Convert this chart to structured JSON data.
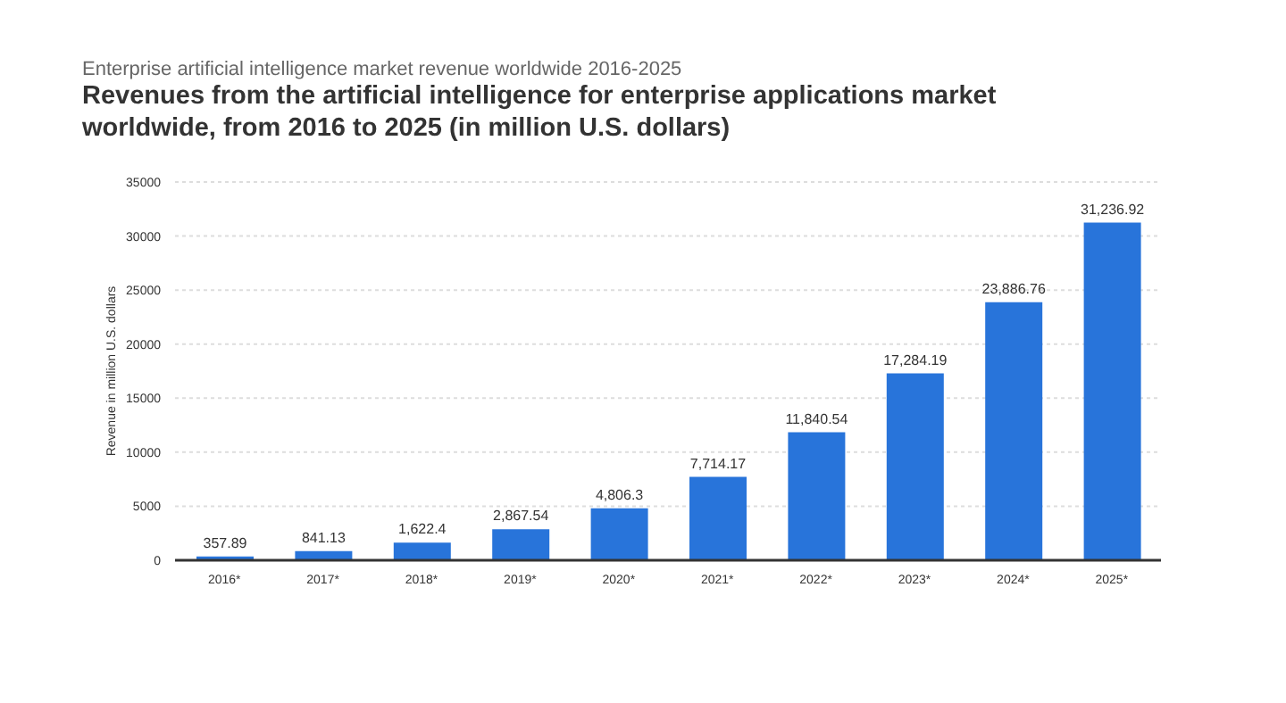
{
  "chart_data": {
    "type": "bar",
    "subtitle": "Enterprise artificial intelligence market revenue worldwide 2016-2025",
    "title": "Revenues from the artificial intelligence for enterprise applications market worldwide, from 2016 to 2025 (in million U.S. dollars)",
    "ylabel": "Revenue in million U.S. dollars",
    "categories": [
      "2016*",
      "2017*",
      "2018*",
      "2019*",
      "2020*",
      "2021*",
      "2022*",
      "2023*",
      "2024*",
      "2025*"
    ],
    "values": [
      357.89,
      841.13,
      1622.4,
      2867.54,
      4806.3,
      7714.17,
      11840.54,
      17284.19,
      23886.76,
      31236.92
    ],
    "value_labels": [
      "357.89",
      "841.13",
      "1,622.4",
      "2,867.54",
      "4,806.3",
      "7,714.17",
      "11,840.54",
      "17,284.19",
      "23,886.76",
      "31,236.92"
    ],
    "color": "#2874da",
    "ylim": [
      0,
      35000
    ],
    "yticks": [
      0,
      5000,
      10000,
      15000,
      20000,
      25000,
      30000,
      35000
    ],
    "grid": "y"
  }
}
